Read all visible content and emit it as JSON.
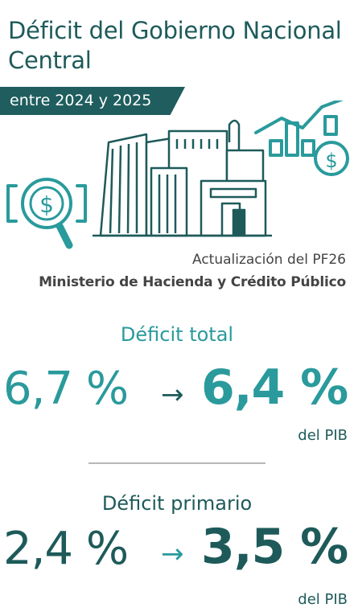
{
  "header": {
    "title": "Déficit del Gobierno Nacional Central",
    "subtitle": "entre 2024 y 2025"
  },
  "source": {
    "line1": "Actualización del PF26",
    "line2": "Ministerio de Hacienda y Crédito Público"
  },
  "deficit_total": {
    "label": "Déficit total",
    "before": "6,7 %",
    "arrow": "→",
    "after": "6,4 %",
    "unit": "del PIB"
  },
  "deficit_primario": {
    "label": "Déficit primario",
    "before": "2,4 %",
    "arrow": "→",
    "after": "3,5 %",
    "unit": "del PIB"
  },
  "colors": {
    "dark_teal": "#1e5a5a",
    "teal": "#2a9a9c",
    "bar": "#1f5d5e"
  },
  "icons": [
    "search-dollar-icon",
    "government-building-icon",
    "bar-chart-dollar-icon"
  ]
}
